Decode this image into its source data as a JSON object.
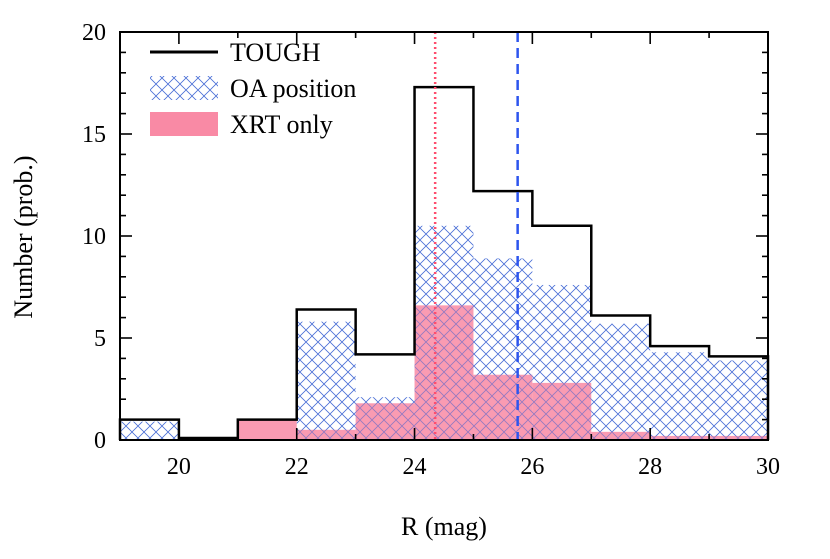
{
  "chart_data": {
    "type": "histogram",
    "xlabel": "R (mag)",
    "ylabel": "Number (prob.)",
    "xlim": [
      19,
      30
    ],
    "ylim": [
      0,
      20
    ],
    "xticks": [
      20,
      22,
      24,
      26,
      28,
      30
    ],
    "yticks": [
      0,
      5,
      10,
      15,
      20
    ],
    "legend_position": "top-left",
    "bin_edges": [
      19,
      20,
      21,
      22,
      23,
      24,
      25,
      26,
      27,
      28,
      29,
      30
    ],
    "series": [
      {
        "name": "TOUGH",
        "style": "step-outline",
        "color": "#000000",
        "values": [
          1.0,
          0.1,
          1.0,
          6.4,
          4.2,
          17.3,
          12.2,
          10.5,
          6.1,
          4.6,
          4.1
        ]
      },
      {
        "name": "OA position",
        "style": "crosshatch",
        "color": "#4a6fd6",
        "values": [
          0.9,
          0.0,
          0.0,
          5.8,
          2.1,
          10.5,
          8.9,
          7.6,
          5.7,
          4.3,
          3.9
        ]
      },
      {
        "name": "XRT only",
        "style": "filled",
        "color": "#f98aa5",
        "values": [
          0.0,
          0.0,
          1.0,
          0.5,
          1.8,
          6.6,
          3.2,
          2.8,
          0.4,
          0.2,
          0.2
        ]
      }
    ],
    "vlines": [
      {
        "x": 24.35,
        "color": "#ff4d6d",
        "style": "dotted"
      },
      {
        "x": 25.75,
        "color": "#2d55ee",
        "style": "dashed"
      }
    ]
  }
}
